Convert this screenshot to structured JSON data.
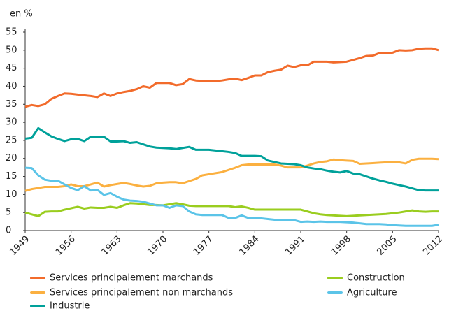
{
  "chart_data": {
    "type": "line",
    "y_label": "en %",
    "x": [
      1949,
      1950,
      1951,
      1952,
      1953,
      1954,
      1955,
      1956,
      1957,
      1958,
      1959,
      1960,
      1961,
      1962,
      1963,
      1964,
      1965,
      1966,
      1967,
      1968,
      1969,
      1970,
      1971,
      1972,
      1973,
      1974,
      1975,
      1976,
      1977,
      1978,
      1979,
      1980,
      1981,
      1982,
      1983,
      1984,
      1985,
      1986,
      1987,
      1988,
      1989,
      1990,
      1991,
      1992,
      1993,
      1994,
      1995,
      1996,
      1997,
      1998,
      1999,
      2000,
      2001,
      2002,
      2003,
      2004,
      2005,
      2006,
      2007,
      2008,
      2009,
      2010,
      2011,
      2012
    ],
    "xlim": [
      1949,
      2012
    ],
    "xticks": [
      1949,
      1956,
      1963,
      1970,
      1977,
      1984,
      1991,
      1998,
      2005,
      2012
    ],
    "ylim": [
      0,
      55
    ],
    "yticks": [
      0,
      5,
      10,
      15,
      20,
      25,
      30,
      35,
      40,
      45,
      50,
      55
    ],
    "series": [
      {
        "name": "Services principalement marchands",
        "color": "#f26b2b",
        "values": [
          34.3,
          34.8,
          34.5,
          35,
          36.5,
          37.3,
          38,
          37.9,
          37.7,
          37.5,
          37.3,
          37,
          38,
          37.3,
          38,
          38.4,
          38.7,
          39.2,
          40,
          39.6,
          40.9,
          40.9,
          40.9,
          40.3,
          40.6,
          42,
          41.6,
          41.5,
          41.5,
          41.4,
          41.6,
          41.9,
          42.1,
          41.7,
          42.3,
          43,
          43,
          43.9,
          44.3,
          44.6,
          45.7,
          45.3,
          45.8,
          45.8,
          46.8,
          46.8,
          46.8,
          46.6,
          46.7,
          46.8,
          47.3,
          47.8,
          48.4,
          48.5,
          49.2,
          49.2,
          49.3,
          50,
          49.9,
          50,
          50.4,
          50.5,
          50.5,
          50
        ]
      },
      {
        "name": "Services principalement non marchands",
        "color": "#fbb040",
        "values": [
          11,
          11.5,
          11.8,
          12.1,
          12.1,
          12.1,
          12.3,
          12.8,
          12.3,
          12.3,
          12.8,
          13.3,
          12.2,
          12.6,
          12.9,
          13.2,
          12.9,
          12.5,
          12.2,
          12.4,
          13.1,
          13.3,
          13.4,
          13.4,
          13.1,
          13.7,
          14.3,
          15.3,
          15.6,
          15.9,
          16.2,
          16.8,
          17.4,
          18.1,
          18.3,
          18.3,
          18.3,
          18.3,
          18.3,
          18,
          17.5,
          17.5,
          17.5,
          18,
          18.6,
          19,
          19.2,
          19.7,
          19.5,
          19.4,
          19.3,
          18.5,
          18.6,
          18.7,
          18.8,
          18.9,
          18.9,
          18.9,
          18.6,
          19.6,
          19.9,
          19.9,
          19.9,
          19.8
        ]
      },
      {
        "name": "Industrie",
        "color": "#00a19a",
        "values": [
          25.5,
          25.7,
          28.4,
          27.2,
          26.1,
          25.4,
          24.8,
          25.3,
          25.4,
          24.8,
          26,
          26,
          26,
          24.7,
          24.7,
          24.8,
          24.3,
          24.5,
          23.9,
          23.3,
          23,
          22.9,
          22.8,
          22.6,
          22.9,
          23.2,
          22.4,
          22.4,
          22.4,
          22.2,
          22,
          21.8,
          21.5,
          20.7,
          20.7,
          20.7,
          20.6,
          19.4,
          19,
          18.6,
          18.5,
          18.4,
          18.1,
          17.5,
          17.2,
          17,
          16.6,
          16.3,
          16.1,
          16.5,
          15.8,
          15.6,
          15,
          14.4,
          13.9,
          13.5,
          13,
          12.6,
          12.2,
          11.7,
          11.2,
          11.1,
          11.1,
          11.1
        ]
      },
      {
        "name": "Construction",
        "color": "#9acd1f",
        "values": [
          5,
          4.5,
          4,
          5.2,
          5.3,
          5.3,
          5.8,
          6.2,
          6.6,
          6.1,
          6.4,
          6.3,
          6.3,
          6.6,
          6.3,
          7,
          7.6,
          7.5,
          7.3,
          7.1,
          7.1,
          7,
          7.3,
          7.6,
          7.3,
          6.9,
          6.8,
          6.8,
          6.8,
          6.8,
          6.8,
          6.8,
          6.5,
          6.7,
          6.3,
          5.8,
          5.8,
          5.8,
          5.8,
          5.8,
          5.8,
          5.8,
          5.8,
          5.3,
          4.8,
          4.5,
          4.3,
          4.2,
          4.1,
          4,
          4.1,
          4.2,
          4.3,
          4.4,
          4.5,
          4.6,
          4.8,
          5,
          5.3,
          5.6,
          5.3,
          5.2,
          5.3,
          5.3
        ]
      },
      {
        "name": "Agriculture",
        "color": "#5bc4e8",
        "values": [
          17.4,
          17.3,
          15.3,
          14.1,
          13.8,
          13.8,
          12.8,
          11.8,
          11.2,
          12.3,
          11.1,
          11.3,
          9.9,
          10.4,
          9.4,
          8.6,
          8.3,
          8.2,
          8,
          7.5,
          7,
          7,
          6.3,
          7,
          6.8,
          5.3,
          4.5,
          4.3,
          4.3,
          4.3,
          4.3,
          3.5,
          3.5,
          4.2,
          3.5,
          3.5,
          3.4,
          3.2,
          3,
          2.9,
          2.9,
          2.9,
          2.4,
          2.5,
          2.4,
          2.5,
          2.4,
          2.4,
          2.4,
          2.3,
          2.2,
          2,
          1.8,
          1.8,
          1.8,
          1.7,
          1.5,
          1.4,
          1.3,
          1.3,
          1.3,
          1.3,
          1.3,
          1.6
        ]
      }
    ]
  }
}
